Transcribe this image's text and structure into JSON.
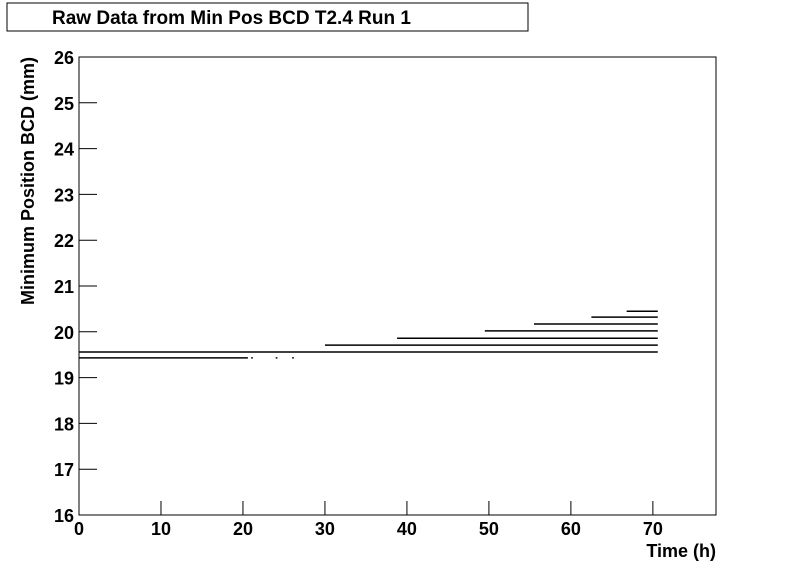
{
  "chart_data": {
    "type": "line",
    "title": "Raw Data from Min Pos BCD T2.4 Run 1",
    "x_label": "Time (h)",
    "y_label": "Minimum Position BCD (mm)",
    "xlim": [
      0,
      77.7
    ],
    "ylim": [
      16,
      26
    ],
    "xticks": [
      0,
      10,
      20,
      30,
      40,
      50,
      60,
      70
    ],
    "yticks": [
      16,
      17,
      18,
      19,
      20,
      21,
      22,
      23,
      24,
      25,
      26
    ],
    "series": [
      {
        "color": "#000000",
        "x": [
          0,
          20.6,
          null,
          21,
          21.2,
          null,
          24,
          24.2,
          null,
          26,
          26.2,
          null,
          0,
          70.6,
          null,
          30,
          70.6,
          null,
          38.8,
          70.6,
          null,
          49.5,
          70.6,
          null,
          55.5,
          70.6,
          null,
          62.5,
          70.6,
          null,
          66.8,
          70.6
        ],
        "values": [
          19.43,
          19.43,
          null,
          19.43,
          19.43,
          null,
          19.43,
          19.43,
          null,
          19.43,
          19.43,
          null,
          19.56,
          19.56,
          null,
          19.71,
          19.71,
          null,
          19.86,
          19.86,
          null,
          20.02,
          20.02,
          null,
          20.17,
          20.17,
          null,
          20.32,
          20.32,
          null,
          20.45,
          20.45
        ]
      }
    ]
  }
}
